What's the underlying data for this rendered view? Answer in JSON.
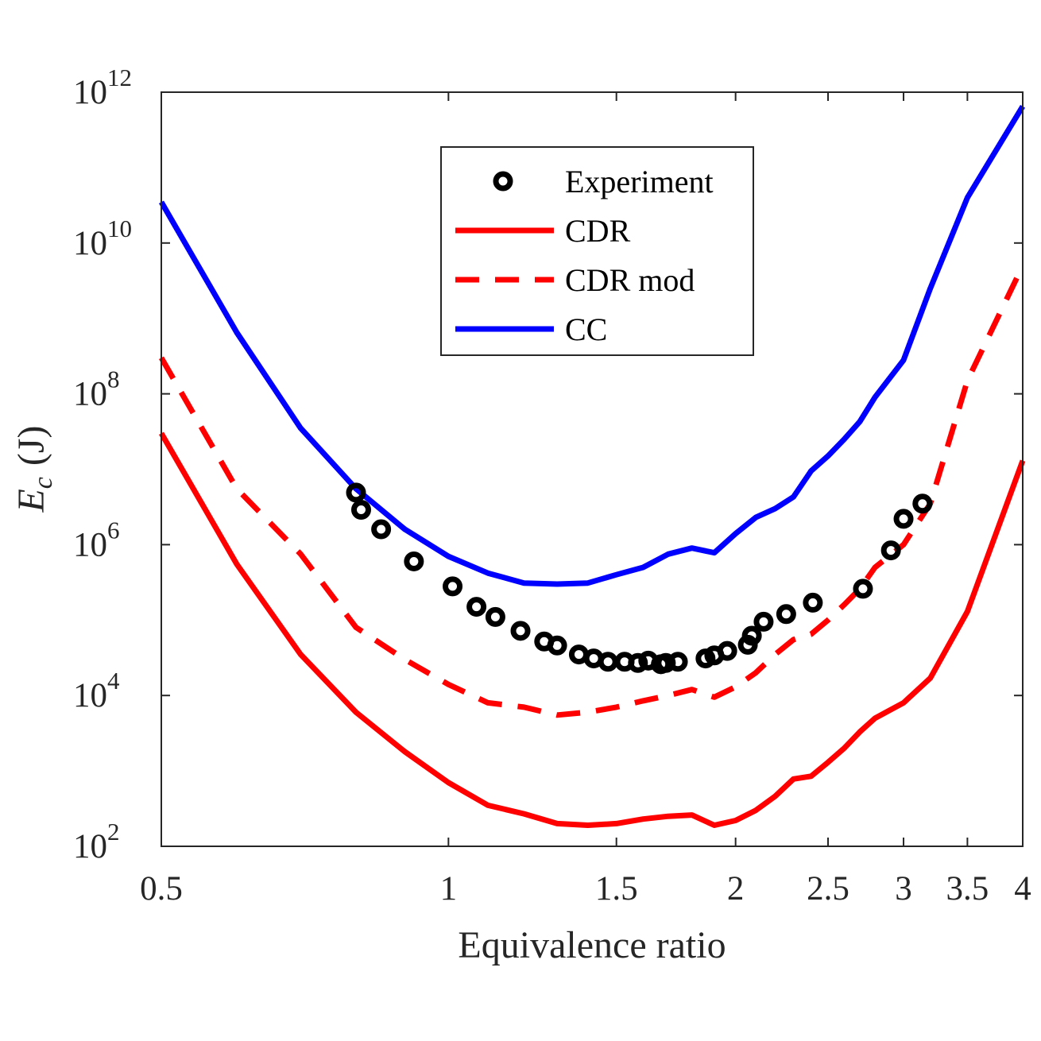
{
  "chart_data": {
    "type": "line",
    "title": "",
    "xlabel": "Equivalence ratio",
    "ylabel": {
      "symbol": "E",
      "subscript": "c",
      "unit": "(J)"
    },
    "xscale": "log",
    "yscale": "log",
    "xlim": [
      0.5,
      4
    ],
    "ylim": [
      100,
      1000000000000
    ],
    "xticks": [
      {
        "value": 0.5,
        "label": "0.5"
      },
      {
        "value": 1,
        "label": "1"
      },
      {
        "value": 1.5,
        "label": "1.5"
      },
      {
        "value": 2,
        "label": "2"
      },
      {
        "value": 2.5,
        "label": "2.5"
      },
      {
        "value": 3,
        "label": "3"
      },
      {
        "value": 3.5,
        "label": "3.5"
      },
      {
        "value": 4,
        "label": "4"
      }
    ],
    "yticks": [
      {
        "value": 100,
        "base": "10",
        "exp": "2"
      },
      {
        "value": 10000,
        "base": "10",
        "exp": "4"
      },
      {
        "value": 1000000,
        "base": "10",
        "exp": "6"
      },
      {
        "value": 100000000,
        "base": "10",
        "exp": "8"
      },
      {
        "value": 10000000000,
        "base": "10",
        "exp": "10"
      },
      {
        "value": 1000000000000,
        "base": "10",
        "exp": "12"
      }
    ],
    "legend_position": "top-center",
    "series": [
      {
        "name": "Experiment",
        "style": "markers",
        "color": "#000000",
        "x": [
          0.8,
          0.81,
          0.85,
          0.92,
          1.01,
          1.07,
          1.12,
          1.19,
          1.26,
          1.3,
          1.37,
          1.42,
          1.47,
          1.53,
          1.58,
          1.62,
          1.67,
          1.69,
          1.74,
          1.86,
          1.9,
          1.96,
          2.06,
          2.08,
          2.14,
          2.26,
          2.41,
          2.72,
          2.91,
          3.0,
          3.14
        ],
        "y": [
          4900000.0,
          2900000.0,
          1600000.0,
          600000.0,
          280000.0,
          150000.0,
          110000.0,
          72000.0,
          52000.0,
          46000.0,
          35000.0,
          31000.0,
          28000.0,
          28000.0,
          27000.0,
          29000.0,
          26000.0,
          27000.0,
          28000.0,
          31000.0,
          34000.0,
          39000.0,
          47000.0,
          62000.0,
          95000.0,
          120000.0,
          170000.0,
          260000.0,
          840000.0,
          2200000.0,
          3500000.0
        ]
      },
      {
        "name": "CDR",
        "style": "solid",
        "color": "#ff0000",
        "x": [
          0.5,
          0.6,
          0.7,
          0.8,
          0.9,
          1.0,
          1.1,
          1.2,
          1.3,
          1.4,
          1.5,
          1.6,
          1.7,
          1.8,
          1.9,
          2.0,
          2.1,
          2.2,
          2.3,
          2.4,
          2.5,
          2.6,
          2.7,
          2.8,
          3.0,
          3.2,
          3.5,
          4.0
        ],
        "y": [
          30000000.0,
          550000.0,
          35000.0,
          6000.0,
          1800.0,
          700.0,
          350.0,
          270.0,
          200.0,
          190.0,
          200.0,
          230.0,
          250.0,
          260.0,
          190.0,
          220.0,
          300.0,
          460.0,
          780.0,
          850.0,
          1300.0,
          2000.0,
          3300.0,
          5000.0,
          8000.0,
          17000.0,
          130000.0,
          13000000.0
        ]
      },
      {
        "name": "CDR mod",
        "style": "dashed",
        "color": "#ff0000",
        "x": [
          0.5,
          0.6,
          0.7,
          0.8,
          0.9,
          1.0,
          1.1,
          1.2,
          1.3,
          1.4,
          1.5,
          1.6,
          1.7,
          1.8,
          1.9,
          2.0,
          2.1,
          2.2,
          2.3,
          2.4,
          2.5,
          2.6,
          2.7,
          2.8,
          3.0,
          3.2,
          3.5,
          4.0
        ],
        "y": [
          300000000.0,
          5500000.0,
          750000.0,
          80000.0,
          30000.0,
          14000.0,
          8000.0,
          7000.0,
          5500.0,
          6000.0,
          7000.0,
          8500.0,
          10000.0,
          12000.0,
          9500.0,
          13000.0,
          20000.0,
          35000.0,
          55000.0,
          65000.0,
          100000.0,
          160000.0,
          260000.0,
          500000.0,
          1000000.0,
          3500000.0,
          150000000.0,
          5000000000.0
        ]
      },
      {
        "name": "CC",
        "style": "solid",
        "color": "#0000ff",
        "x": [
          0.5,
          0.6,
          0.7,
          0.8,
          0.9,
          1.0,
          1.1,
          1.2,
          1.3,
          1.4,
          1.5,
          1.6,
          1.7,
          1.8,
          1.9,
          2.0,
          2.1,
          2.2,
          2.3,
          2.4,
          2.5,
          2.6,
          2.7,
          2.8,
          3.0,
          3.2,
          3.5,
          4.0
        ],
        "y": [
          35000000000.0,
          650000000.0,
          35000000.0,
          5500000.0,
          1600000.0,
          700000.0,
          420000.0,
          310000.0,
          300000.0,
          310000.0,
          400000.0,
          500000.0,
          750000.0,
          900000.0,
          780000.0,
          1400000.0,
          2300000.0,
          3000000.0,
          4300000.0,
          9500000.0,
          15000000.0,
          25000000.0,
          43000000.0,
          90000000.0,
          280000000.0,
          2500000000.0,
          40000000000.0,
          650000000000.0
        ]
      }
    ]
  }
}
